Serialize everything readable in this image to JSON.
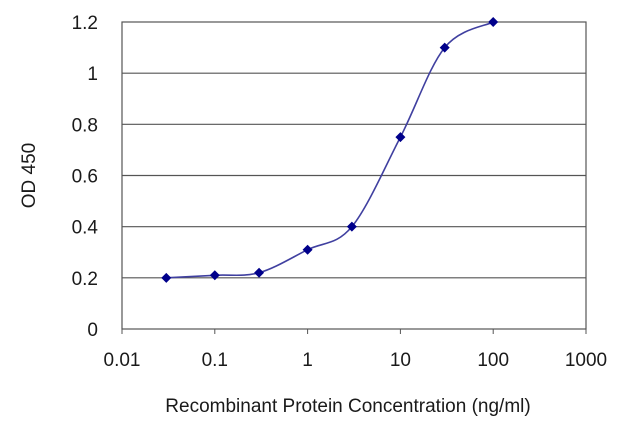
{
  "chart_data": {
    "type": "line",
    "xlabel": "Recombinant Protein Concentration (ng/ml)",
    "ylabel": "OD 450",
    "x_scale": "log",
    "xlim": [
      0.01,
      1000
    ],
    "ylim": [
      0,
      1.2
    ],
    "x_ticks": [
      "0.01",
      "0.1",
      "1",
      "10",
      "100",
      "1000"
    ],
    "y_ticks": [
      "0",
      "0.2",
      "0.4",
      "0.6",
      "0.8",
      "1",
      "1.2"
    ],
    "grid": "horizontal",
    "legend": "none",
    "series": [
      {
        "color": "#4040a0",
        "marker_color": "#00008b",
        "x": [
          0.03,
          0.1,
          0.3,
          1,
          3,
          10,
          30,
          100
        ],
        "y": [
          0.2,
          0.21,
          0.22,
          0.31,
          0.4,
          0.75,
          1.1,
          1.2
        ]
      }
    ]
  }
}
